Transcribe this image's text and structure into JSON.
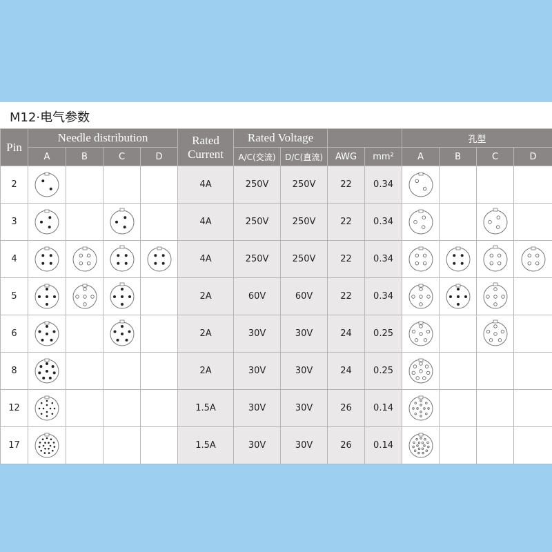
{
  "title": "M12·电气参数",
  "colors": {
    "background": "#9ccff0",
    "header": "#8a8685",
    "shaded": "#ebe8e9"
  },
  "header": {
    "pin": "Pin",
    "needle_distribution": "Needle distribution",
    "rated_current": "Rated Current",
    "rated_voltage": "Rated Voltage",
    "hole_type": "孔型",
    "codes": [
      "A",
      "B",
      "C",
      "D"
    ],
    "ac": "A/C(交流)",
    "dc": "D/C(直流)",
    "awg": "AWG",
    "mm2": "mm²"
  },
  "rows": [
    {
      "pin": "2",
      "current": "4A",
      "ac": "250V",
      "dc": "250V",
      "awg": "22",
      "mm2": "0.34",
      "needle": [
        "A"
      ],
      "hole": [
        "A"
      ]
    },
    {
      "pin": "3",
      "current": "4A",
      "ac": "250V",
      "dc": "250V",
      "awg": "22",
      "mm2": "0.34",
      "needle": [
        "A",
        "C"
      ],
      "hole": [
        "A",
        "C"
      ]
    },
    {
      "pin": "4",
      "current": "4A",
      "ac": "250V",
      "dc": "250V",
      "awg": "22",
      "mm2": "0.34",
      "needle": [
        "A",
        "B",
        "C",
        "D"
      ],
      "hole": [
        "A",
        "B",
        "C",
        "D"
      ]
    },
    {
      "pin": "5",
      "current": "2A",
      "ac": "60V",
      "dc": "60V",
      "awg": "22",
      "mm2": "0.34",
      "needle": [
        "A",
        "B",
        "C"
      ],
      "hole": [
        "A",
        "B",
        "C"
      ]
    },
    {
      "pin": "6",
      "current": "2A",
      "ac": "30V",
      "dc": "30V",
      "awg": "24",
      "mm2": "0.25",
      "needle": [
        "A",
        "C"
      ],
      "hole": [
        "A",
        "C"
      ]
    },
    {
      "pin": "8",
      "current": "2A",
      "ac": "30V",
      "dc": "30V",
      "awg": "24",
      "mm2": "0.25",
      "needle": [
        "A"
      ],
      "hole": [
        "A"
      ]
    },
    {
      "pin": "12",
      "current": "1.5A",
      "ac": "30V",
      "dc": "30V",
      "awg": "26",
      "mm2": "0.14",
      "needle": [
        "A"
      ],
      "hole": [
        "A"
      ]
    },
    {
      "pin": "17",
      "current": "1.5A",
      "ac": "30V",
      "dc": "30V",
      "awg": "26",
      "mm2": "0.14",
      "needle": [
        "A"
      ],
      "hole": [
        "A"
      ]
    }
  ]
}
